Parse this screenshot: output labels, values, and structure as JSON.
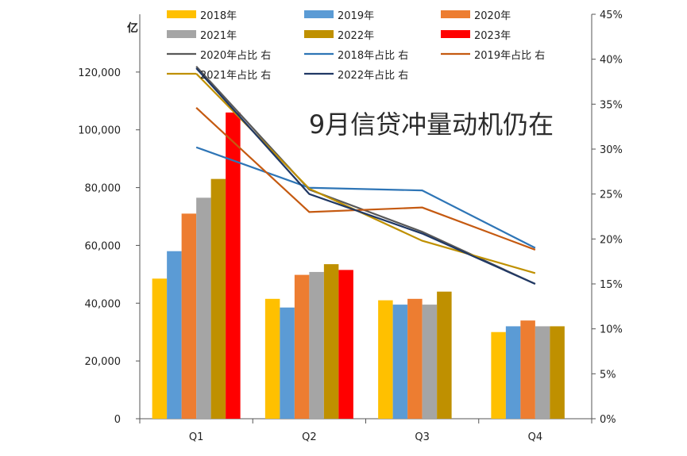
{
  "chart_data": {
    "type": "bar",
    "unit_label": "亿",
    "overlay_text": "9月信贷冲量动机仍在",
    "categories": [
      "Q1",
      "Q2",
      "Q3",
      "Q4"
    ],
    "y_left": {
      "min": 0,
      "max": 140000,
      "ticks": [
        0,
        20000,
        40000,
        60000,
        80000,
        100000,
        120000
      ],
      "tick_labels": [
        "0",
        "20,000",
        "40,000",
        "60,000",
        "80,000",
        "100,000",
        "120,000"
      ]
    },
    "y_right": {
      "min": 0,
      "max": 45,
      "ticks": [
        0,
        5,
        10,
        15,
        20,
        25,
        30,
        35,
        40,
        45
      ],
      "tick_labels": [
        "0%",
        "5%",
        "10%",
        "15%",
        "20%",
        "25%",
        "30%",
        "35%",
        "40%",
        "45%"
      ]
    },
    "bar_series": [
      {
        "name": "2018年",
        "color": "#FFC000",
        "values": [
          48500,
          41500,
          41000,
          30000
        ]
      },
      {
        "name": "2019年",
        "color": "#5B9BD5",
        "values": [
          58000,
          38500,
          39500,
          32000
        ]
      },
      {
        "name": "2020年",
        "color": "#ED7D31",
        "values": [
          71000,
          49800,
          41500,
          34000
        ]
      },
      {
        "name": "2021年",
        "color": "#A5A5A5",
        "values": [
          76500,
          50800,
          39500,
          32000
        ]
      },
      {
        "name": "2022年",
        "color": "#BF9000",
        "values": [
          83000,
          53500,
          44000,
          32000
        ]
      },
      {
        "name": "2023年",
        "color": "#FF0000",
        "values": [
          106000,
          51500,
          null,
          null
        ]
      }
    ],
    "line_series": [
      {
        "name": "2020年占比 右",
        "color": "#595959",
        "values": [
          39.2,
          25.5,
          20.8,
          15.0
        ]
      },
      {
        "name": "2018年占比 右",
        "color": "#2E75B6",
        "values": [
          30.2,
          25.7,
          25.4,
          19.0
        ]
      },
      {
        "name": "2019年占比 右",
        "color": "#C55A11",
        "values": [
          34.6,
          23.0,
          23.5,
          18.8
        ]
      },
      {
        "name": "2021年占比 右",
        "color": "#BF9000",
        "values": [
          38.4,
          25.6,
          19.8,
          16.2
        ]
      },
      {
        "name": "2022年占比 右",
        "color": "#203864",
        "values": [
          39.0,
          25.0,
          20.6,
          15.0
        ]
      }
    ],
    "legend_placement": "top",
    "grid": false
  }
}
